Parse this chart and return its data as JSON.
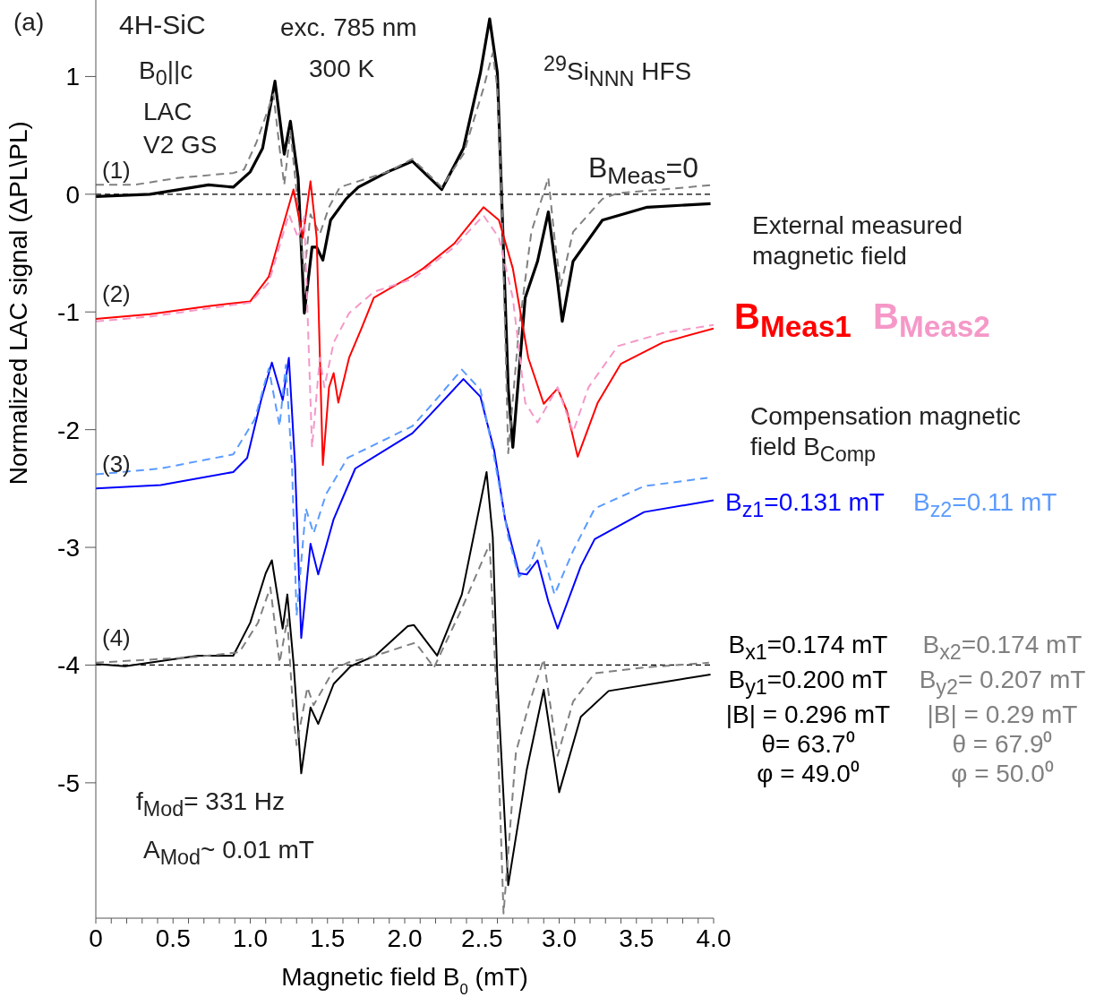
{
  "chart_data": {
    "type": "line",
    "xlabel": "Magnetic field B$_{0}$ (mT)",
    "ylabel": "Normalized LAC signal (ΔPL\\PL)",
    "xlim": [
      0,
      4.0
    ],
    "ylim": [
      -6.15,
      1.65
    ],
    "xticks": [
      0,
      {
        "value": 0.1,
        "label": null
      },
      {
        "value": 0.2,
        "label": null
      },
      {
        "value": 0.3,
        "label": null
      },
      {
        "value": 0.4,
        "label": null
      },
      0.5,
      {
        "value": 0.6,
        "label": null
      },
      {
        "value": 0.7,
        "label": null
      },
      {
        "value": 0.8,
        "label": null
      },
      {
        "value": 0.9,
        "label": null
      },
      {
        "value": 1.0,
        "label": "1.0"
      },
      {
        "value": 1.1,
        "label": null
      },
      {
        "value": 1.2,
        "label": null
      },
      {
        "value": 1.3,
        "label": null
      },
      {
        "value": 1.4,
        "label": null
      },
      1.5,
      {
        "value": 1.6,
        "label": null
      },
      {
        "value": 1.7,
        "label": null
      },
      {
        "value": 1.8,
        "label": null
      },
      {
        "value": 1.9,
        "label": null
      },
      {
        "value": 2.0,
        "label": "2.0"
      },
      {
        "value": 2.1,
        "label": null
      },
      {
        "value": 2.2,
        "label": null
      },
      {
        "value": 2.3,
        "label": null
      },
      {
        "value": 2.4,
        "label": null
      },
      {
        "value": 2.5,
        "label": "2..5"
      },
      {
        "value": 2.6,
        "label": null
      },
      {
        "value": 2.7,
        "label": null
      },
      {
        "value": 2.8,
        "label": null
      },
      {
        "value": 2.9,
        "label": null
      },
      {
        "value": 3.0,
        "label": "3.0"
      },
      {
        "value": 3.1,
        "label": null
      },
      {
        "value": 3.2,
        "label": null
      },
      {
        "value": 3.3,
        "label": null
      },
      {
        "value": 3.4,
        "label": null
      },
      3.5,
      {
        "value": 3.6,
        "label": null
      },
      {
        "value": 3.7,
        "label": null
      },
      {
        "value": 3.8,
        "label": null
      },
      {
        "value": 3.9,
        "label": null
      },
      {
        "value": 4.0,
        "label": "4.0"
      }
    ],
    "yticks": [
      1,
      0,
      -1,
      -2,
      -3,
      -4,
      -5
    ],
    "marker": "none",
    "ref_lines": [
      {
        "axis": "y",
        "value": 0,
        "color": "#000000",
        "line_style": "dashed"
      },
      {
        "axis": "y",
        "value": -4,
        "color": "#000000",
        "line_style": "dashed"
      }
    ],
    "series": [
      {
        "color": "#000000",
        "line_style": "solid",
        "x": [
          0,
          0.35,
          0.73,
          0.89,
          1.0,
          1.08,
          1.16,
          1.22,
          1.26,
          1.31,
          1.35,
          1.4,
          1.43,
          1.47,
          1.52,
          1.62,
          1.7,
          1.89,
          2.05,
          2.24,
          2.38,
          2.49,
          2.55,
          2.6,
          2.63,
          2.67,
          2.7,
          2.78,
          2.86,
          2.93,
          2.99,
          3.02,
          3.09,
          3.28,
          3.57,
          3.98
        ],
        "values": [
          -0.02,
          0,
          0.08,
          0.06,
          0.19,
          0.39,
          0.96,
          0.34,
          0.62,
          0.14,
          -1.01,
          -0.45,
          -0.45,
          -0.56,
          -0.22,
          -0.04,
          0.06,
          0.19,
          0.28,
          0.04,
          0.39,
          1.03,
          1.49,
          1.03,
          -0.11,
          -1.64,
          -2.15,
          -0.88,
          -0.57,
          -0.15,
          -0.75,
          -1.08,
          -0.57,
          -0.22,
          -0.11,
          -0.08
        ]
      },
      {
        "color": "#808080",
        "line_style": "dashed",
        "x": [
          0,
          0.25,
          0.54,
          0.89,
          0.96,
          1.04,
          1.15,
          1.19,
          1.22,
          1.26,
          1.31,
          1.35,
          1.39,
          1.45,
          1.51,
          1.58,
          1.7,
          1.89,
          2.05,
          2.24,
          2.38,
          2.51,
          2.57,
          2.6,
          2.63,
          2.67,
          2.74,
          2.82,
          2.93,
          2.97,
          3.01,
          3.09,
          3.28,
          3.38,
          3.67,
          4.0
        ],
        "values": [
          0.08,
          0.08,
          0.14,
          0.18,
          0.21,
          0.44,
          0.85,
          0.39,
          0.08,
          0.54,
          -0.11,
          -0.68,
          -0.17,
          -0.34,
          -0.11,
          0.06,
          0.11,
          0.19,
          0.3,
          0.06,
          0.34,
          0.9,
          1.2,
          0.9,
          -0.11,
          -2.2,
          -1.14,
          -0.32,
          0.14,
          -0.37,
          -0.78,
          -0.32,
          -0.04,
          0.01,
          0.04,
          0.08
        ]
      },
      {
        "name": "B$_{Meas1}$",
        "color": "#ff0000",
        "line_style": "solid",
        "x": [
          0,
          0.35,
          0.73,
          1.0,
          1.12,
          1.19,
          1.28,
          1.34,
          1.39,
          1.43,
          1.47,
          1.51,
          1.54,
          1.57,
          1.64,
          1.72,
          1.8,
          2.05,
          2.12,
          2.32,
          2.51,
          2.61,
          2.7,
          2.8,
          2.9,
          2.99,
          3.05,
          3.12,
          3.25,
          3.4,
          3.67,
          4.0
        ],
        "values": [
          -1.06,
          -1.02,
          -0.95,
          -0.91,
          -0.7,
          -0.37,
          0.04,
          -0.37,
          0.11,
          -0.37,
          -2.3,
          -1.64,
          -1.52,
          -1.77,
          -1.39,
          -1.14,
          -0.88,
          -0.69,
          -0.63,
          -0.42,
          -0.11,
          -0.22,
          -0.63,
          -1.39,
          -1.78,
          -1.65,
          -1.84,
          -2.23,
          -1.77,
          -1.44,
          -1.26,
          -1.14
        ]
      },
      {
        "name": "B$_{Meas2}$",
        "color": "#f598c8",
        "line_style": "dashed",
        "x": [
          0,
          0.35,
          0.73,
          1.0,
          1.12,
          1.25,
          1.31,
          1.35,
          1.4,
          1.45,
          1.48,
          1.54,
          1.64,
          1.8,
          2.05,
          2.12,
          2.32,
          2.51,
          2.61,
          2.7,
          2.78,
          2.86,
          2.99,
          3.09,
          3.19,
          3.38,
          3.67,
          4.0
        ],
        "values": [
          -1.08,
          -1.04,
          -0.97,
          -0.92,
          -0.75,
          -0.17,
          -0.37,
          -0.19,
          -2.15,
          -1.39,
          -1.64,
          -1.26,
          -1.01,
          -0.83,
          -0.72,
          -0.65,
          -0.45,
          -0.18,
          -0.37,
          -0.88,
          -1.77,
          -1.94,
          -1.64,
          -2.02,
          -1.64,
          -1.29,
          -1.18,
          -1.11
        ]
      },
      {
        "name": "B$_{z1}$=0.131 mT",
        "color": "#0000ff",
        "line_style": "solid",
        "x": [
          0,
          0.42,
          0.89,
          0.98,
          1.07,
          1.14,
          1.21,
          1.25,
          1.29,
          1.33,
          1.39,
          1.44,
          1.54,
          1.68,
          2.05,
          2.16,
          2.38,
          2.49,
          2.58,
          2.65,
          2.74,
          2.79,
          2.86,
          2.93,
          2.99,
          3.14,
          3.23,
          3.55,
          4.0
        ],
        "values": [
          -2.5,
          -2.47,
          -2.36,
          -2.24,
          -1.75,
          -1.43,
          -1.75,
          -1.39,
          -2.3,
          -3.77,
          -2.97,
          -3.23,
          -2.76,
          -2.33,
          -2.03,
          -1.88,
          -1.57,
          -1.72,
          -2.18,
          -2.76,
          -3.22,
          -3.23,
          -3.11,
          -3.46,
          -3.69,
          -3.16,
          -2.93,
          -2.7,
          -2.6
        ]
      },
      {
        "name": "B$_{z2}$=0.11 mT",
        "color": "#5b9bff",
        "line_style": "dashed",
        "x": [
          0,
          0.42,
          0.89,
          1.03,
          1.12,
          1.19,
          1.23,
          1.27,
          1.3,
          1.36,
          1.41,
          1.49,
          1.63,
          2.05,
          2.16,
          2.37,
          2.49,
          2.58,
          2.67,
          2.74,
          2.81,
          2.87,
          2.97,
          3.09,
          3.23,
          3.55,
          3.96
        ],
        "values": [
          -2.38,
          -2.33,
          -2.21,
          -1.91,
          -1.48,
          -1.97,
          -1.45,
          -2.3,
          -3.58,
          -2.67,
          -2.88,
          -2.55,
          -2.24,
          -1.97,
          -1.81,
          -1.49,
          -1.66,
          -2.24,
          -2.91,
          -3.25,
          -3.16,
          -2.94,
          -3.4,
          -3.03,
          -2.67,
          -2.48,
          -2.41
        ]
      },
      {
        "name": "B$_{x1}$=0.174 mT\nB$_{y1}$=0.200 mT\n|B| = 0.296 mT\nθ= 63.7⁰\nφ = 49.0⁰",
        "color": "#000000",
        "line_style": "solid",
        "x": [
          0,
          0.19,
          0.66,
          0.89,
          1.0,
          1.1,
          1.14,
          1.21,
          1.24,
          1.28,
          1.33,
          1.39,
          1.44,
          1.54,
          1.65,
          1.81,
          2.02,
          2.06,
          2.21,
          2.37,
          2.53,
          2.57,
          2.6,
          2.67,
          2.79,
          2.9,
          3.0,
          3.14,
          3.32,
          3.98
        ],
        "values": [
          -3.99,
          -4.01,
          -3.92,
          -3.92,
          -3.64,
          -3.22,
          -3.11,
          -3.69,
          -3.4,
          -3.98,
          -4.92,
          -4.36,
          -4.5,
          -4.16,
          -4.01,
          -3.92,
          -3.67,
          -3.66,
          -3.92,
          -3.4,
          -2.36,
          -2.91,
          -4.13,
          -5.87,
          -4.89,
          -4.21,
          -5.08,
          -4.44,
          -4.22,
          -4.08
        ]
      },
      {
        "name": "B$_{x2}$=0.174 mT\nB$_{y2}$= 0.207 mT\n|B| = 0.29 mT\nθ = 67.9⁰\nφ = 50.0⁰",
        "color": "#808080",
        "line_style": "dashed",
        "x": [
          0,
          0.66,
          0.93,
          1.05,
          1.13,
          1.19,
          1.24,
          1.28,
          1.3,
          1.37,
          1.41,
          1.54,
          1.63,
          1.81,
          2.02,
          2.07,
          2.19,
          2.37,
          2.55,
          2.59,
          2.64,
          2.72,
          2.81,
          2.9,
          2.99,
          3.09,
          3.23,
          3.55,
          3.97
        ],
        "values": [
          -3.98,
          -3.93,
          -3.89,
          -3.64,
          -3.34,
          -3.98,
          -3.61,
          -4.44,
          -4.68,
          -4.19,
          -4.34,
          -4.04,
          -3.98,
          -3.92,
          -3.83,
          -3.81,
          -4.02,
          -3.52,
          -2.97,
          -4.13,
          -6.11,
          -4.74,
          -4.31,
          -3.95,
          -4.77,
          -4.31,
          -4.07,
          -4.02,
          -3.98
        ]
      }
    ],
    "annotations": [
      "(a)",
      "4H-SiC",
      "exc. 785 nm",
      "300 K",
      "$^{29}$Si$_{NNN}$ HFS",
      "B$_{0}$||c",
      "LAC",
      "V2 GS",
      "(1)",
      "(2)",
      "(3)",
      "(4)",
      "B$_{Meas}$=0",
      "External measured magnetic field",
      "Compensation magnetic field B$_{Comp}$",
      "f$_{Mod}$= 331 Hz",
      "A$_{Mod}$~ 0.01 mT"
    ]
  }
}
